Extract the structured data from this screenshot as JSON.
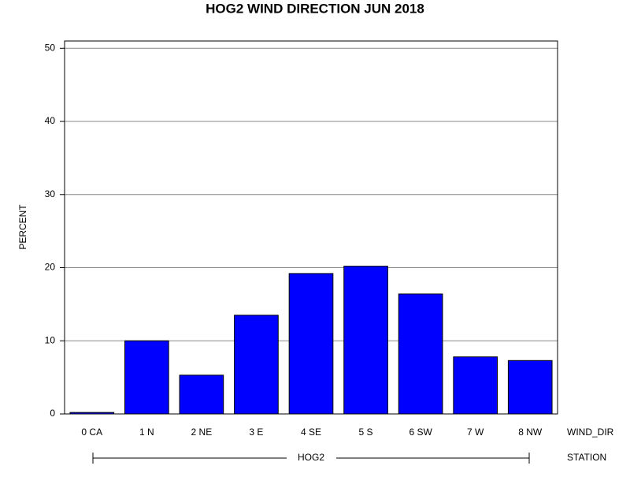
{
  "chart_data": {
    "type": "bar",
    "title": "HOG2 WIND DIRECTION JUN 2018",
    "y_label": "PERCENT",
    "x_label": "WIND_DIR",
    "group_label": "STATION",
    "group": "HOG2",
    "categories": [
      "0 CA",
      "1 N",
      "2 NE",
      "3 E",
      "4 SE",
      "5 S",
      "6 SW",
      "7 W",
      "8 NW"
    ],
    "values": [
      0.2,
      10.0,
      5.3,
      13.5,
      19.2,
      20.2,
      16.4,
      7.8,
      7.3
    ],
    "color": "#0000ff",
    "ylim": [
      0,
      51
    ],
    "yticks": [
      0,
      10,
      20,
      30,
      40,
      50
    ],
    "grid": true
  }
}
